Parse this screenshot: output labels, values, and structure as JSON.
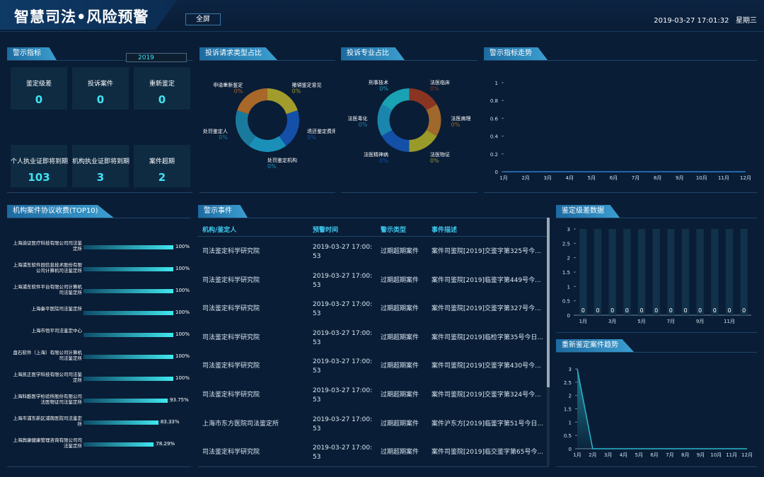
{
  "header": {
    "title": "智慧司法•风险预警",
    "fullscreen": "全屏",
    "datetime": "2019-03-27 17:01:32",
    "weekday": "星期三"
  },
  "kpi": {
    "title": "警示指标",
    "year": "2019",
    "items": [
      {
        "label": "鉴定级差",
        "value": 0
      },
      {
        "label": "投诉案件",
        "value": 0
      },
      {
        "label": "重新鉴定",
        "value": 0
      },
      {
        "label": "个人执业证即将到期",
        "value": 103
      },
      {
        "label": "机构执业证即将到期",
        "value": 3
      },
      {
        "label": "案件超期",
        "value": 2
      }
    ]
  },
  "table": {
    "title": "警示事件",
    "columns": [
      "机构/鉴定人",
      "预警时间",
      "警示类型",
      "事件描述"
    ],
    "rows": [
      [
        "司法鉴定科学研究院",
        "2019-03-27 17:00:53",
        "过期超期案件",
        "案件司鉴院[2019]交鉴字第325号今..."
      ],
      [
        "司法鉴定科学研究院",
        "2019-03-27 17:00:53",
        "过期超期案件",
        "案件司鉴院[2019]临鉴字第449号今..."
      ],
      [
        "司法鉴定科学研究院",
        "2019-03-27 17:00:53",
        "过期超期案件",
        "案件司鉴院[2019]交鉴字第327号今..."
      ],
      [
        "司法鉴定科学研究院",
        "2019-03-27 17:00:53",
        "过期超期案件",
        "案件司鉴院[2019]临检字第35号今日..."
      ],
      [
        "司法鉴定科学研究院",
        "2019-03-27 17:00:53",
        "过期超期案件",
        "案件司鉴院[2019]交鉴字第430号今..."
      ],
      [
        "司法鉴定科学研究院",
        "2019-03-27 17:00:53",
        "过期超期案件",
        "案件司鉴院[2019]交鉴字第324号今..."
      ],
      [
        "上海市东方医院司法鉴定所",
        "2019-03-27 17:00:53",
        "过期超期案件",
        "案件沪东方[2019]临鉴字第51号今日..."
      ],
      [
        "司法鉴定科学研究院",
        "2019-03-27 17:00:53",
        "过期超期案件",
        "案件司鉴院[2019]临交鉴字第65号今..."
      ]
    ]
  },
  "chart_data": [
    {
      "type": "pie",
      "title": "投诉请求类型占比",
      "categories": [
        "撤销鉴定意见",
        "退还鉴定费用",
        "处罚鉴定机构",
        "处罚鉴定人",
        "申请重新鉴定"
      ],
      "values": [
        0,
        0,
        0,
        0,
        0
      ],
      "value_labels": [
        "0%",
        "0%",
        "0%",
        "0%",
        "0%"
      ],
      "colors": [
        "#a29c2c",
        "#1450a8",
        "#1a90b8",
        "#1a7a9e",
        "#a8682a"
      ]
    },
    {
      "type": "pie",
      "title": "投诉专业占比",
      "categories": [
        "法医临床",
        "法医病理",
        "法医物证",
        "法医精神病",
        "法医毒化",
        "刑事技术"
      ],
      "values": [
        0,
        0,
        0,
        0,
        0,
        0
      ],
      "value_labels": [
        "0%",
        "0%",
        "0%",
        "0%",
        "0%",
        "0%"
      ],
      "colors": [
        "#8a3422",
        "#a0682a",
        "#9a9a2a",
        "#1450a8",
        "#1a86ae",
        "#18a2b4"
      ]
    },
    {
      "type": "line",
      "title": "警示指标走势",
      "categories": [
        "1月",
        "2月",
        "3月",
        "4月",
        "5月",
        "6月",
        "7月",
        "8月",
        "9月",
        "10月",
        "11月",
        "12月"
      ],
      "values": [
        0,
        0,
        0,
        0,
        0,
        0,
        0,
        0,
        0,
        0,
        0,
        0
      ],
      "color": "#2a7fd4",
      "ylim": [
        0,
        1
      ],
      "yticks": [
        0,
        0.2,
        0.4,
        0.6,
        0.8,
        1
      ]
    },
    {
      "type": "hbar",
      "title": "机构案件协议收费(TOP10)",
      "categories": [
        "上海渝证医疗科技有限公司司法鉴定所",
        "上海浦东软件园信息技术股份有限公司计算机司法鉴定所",
        "上海浦东软件平台有限公司计算机司法鉴定所",
        "上海秦平医院司法鉴定所",
        "上海市恒平司法鉴定中心",
        "盘石软件（上海）有限公司计算机司法鉴定所",
        "上海凯正医学科技有限公司司法鉴定所",
        "上海科酷医学检验所股份有限公司法医物证司法鉴定所",
        "上海市浦东新区浦南医院司法鉴定所",
        "上海舆康健康管理咨询有限公司司法鉴定所"
      ],
      "values": [
        100,
        100,
        100,
        100,
        100,
        100,
        100,
        93.75,
        83.33,
        78.29
      ],
      "value_labels": [
        "100%",
        "100%",
        "100%",
        "100%",
        "100%",
        "100%",
        "100%",
        "93.75%",
        "83.33%",
        "78.29%"
      ],
      "color": "#40e8f0"
    },
    {
      "type": "bar",
      "title": "鉴定级差数据",
      "categories": [
        "1月",
        null,
        "3月",
        null,
        "5月",
        null,
        "7月",
        null,
        "9月",
        null,
        "11月",
        null
      ],
      "values": [
        0,
        0,
        0,
        0,
        0,
        0,
        0,
        0,
        0,
        0,
        0,
        0
      ],
      "color": "#2ad0e8",
      "ylim": [
        0,
        3
      ],
      "yticks": [
        0,
        0.5,
        1,
        1.5,
        2,
        2.5,
        3
      ]
    },
    {
      "type": "area",
      "title": "重新鉴定案件趋势",
      "categories": [
        "1月",
        "2月",
        "3月",
        "4月",
        "5月",
        "6月",
        "7月",
        "8月",
        "9月",
        "10月",
        "11月",
        "12月"
      ],
      "values": [
        3,
        0,
        0,
        0,
        0,
        0,
        0,
        0,
        0,
        0,
        0,
        0
      ],
      "color": "#2ab8c8",
      "ylim": [
        0,
        3
      ],
      "yticks": [
        0,
        0.5,
        1,
        1.5,
        2,
        2.5,
        3
      ]
    }
  ]
}
